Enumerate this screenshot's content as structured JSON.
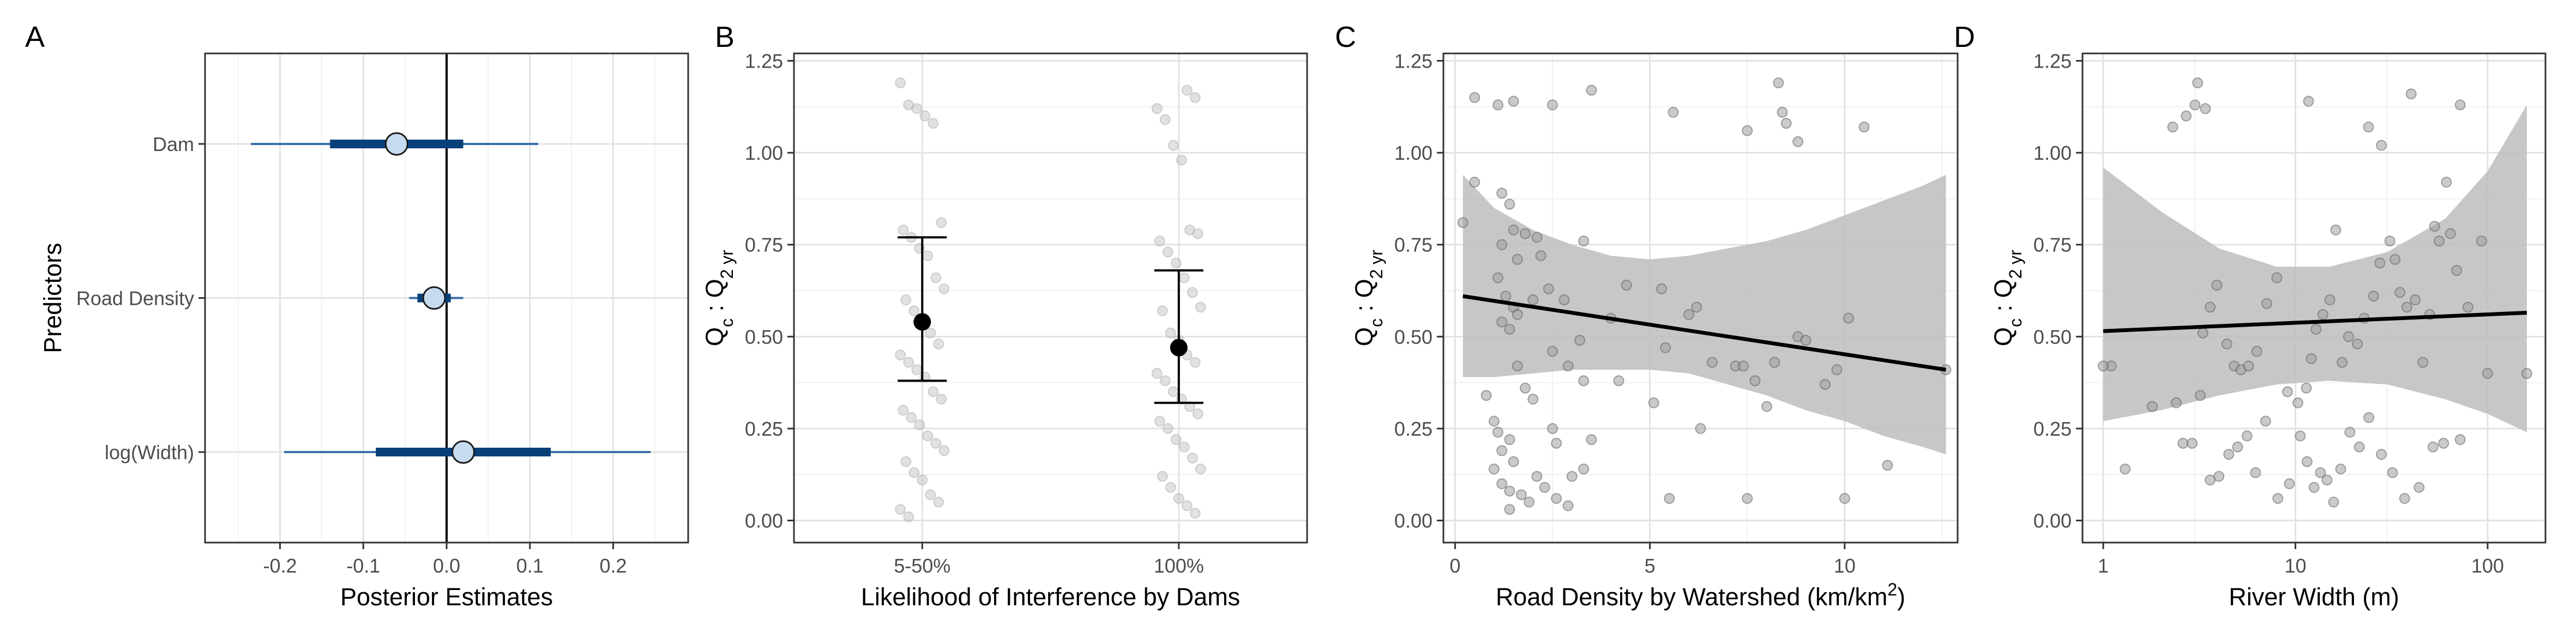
{
  "chart_data": [
    {
      "panel": "A",
      "type": "interval",
      "xlabel": "Posterior Estimates",
      "ylabel": "Predictors",
      "xlim": [
        -0.29,
        0.29
      ],
      "xticks": [
        -0.2,
        -0.1,
        0.0,
        0.1,
        0.2
      ],
      "xtick_labels": [
        "-0.2",
        "-0.1",
        "0.0",
        "0.1",
        "0.2"
      ],
      "reference_line": 0,
      "colors": {
        "outer": "#3a6fa8",
        "inner": "#08407a",
        "point": "#c6dbef"
      },
      "predictors": [
        {
          "label": "Dam",
          "estimate": -0.06,
          "inner": [
            -0.14,
            0.02
          ],
          "outer": [
            -0.235,
            0.11
          ]
        },
        {
          "label": "Road Density",
          "estimate": -0.015,
          "inner": [
            -0.035,
            0.005
          ],
          "outer": [
            -0.045,
            0.02
          ]
        },
        {
          "label": "log(Width)",
          "estimate": 0.02,
          "inner": [
            -0.085,
            0.125
          ],
          "outer": [
            -0.195,
            0.245
          ]
        }
      ]
    },
    {
      "panel": "B",
      "type": "errorbar",
      "xlabel": "Likelihood of Interference by Dams",
      "ylabel_main": "Q",
      "ylabel_sub1": "c",
      "ylabel_sep": " : Q",
      "ylabel_sub2": "2 yr",
      "ylim": [
        -0.06,
        1.27
      ],
      "yticks": [
        0.0,
        0.25,
        0.5,
        0.75,
        1.0,
        1.25
      ],
      "ytick_labels": [
        "0.00",
        "0.25",
        "0.50",
        "0.75",
        "1.00",
        "1.25"
      ],
      "categories": [
        "5-50%",
        "100%"
      ],
      "means": [
        0.54,
        0.47
      ],
      "lower": [
        0.38,
        0.32
      ],
      "upper": [
        0.77,
        0.68
      ],
      "points": [
        [
          1.19,
          1.13,
          1.12,
          1.1,
          1.08,
          0.81,
          0.79,
          0.77,
          0.74,
          0.72,
          0.66,
          0.63,
          0.6,
          0.57,
          0.55,
          0.51,
          0.48,
          0.45,
          0.43,
          0.41,
          0.39,
          0.35,
          0.33,
          0.3,
          0.28,
          0.26,
          0.23,
          0.21,
          0.19,
          0.16,
          0.13,
          0.11,
          0.07,
          0.05,
          0.03,
          0.01
        ],
        [
          1.17,
          1.15,
          1.12,
          1.09,
          1.02,
          0.98,
          0.79,
          0.78,
          0.76,
          0.73,
          0.7,
          0.66,
          0.62,
          0.58,
          0.57,
          0.51,
          0.49,
          0.45,
          0.43,
          0.4,
          0.38,
          0.35,
          0.33,
          0.31,
          0.29,
          0.27,
          0.25,
          0.22,
          0.2,
          0.17,
          0.14,
          0.12,
          0.09,
          0.06,
          0.04,
          0.02
        ]
      ]
    },
    {
      "panel": "C",
      "type": "scatter",
      "xlabel_main": "Road Density by Watershed (km",
      "xlabel_mid": "/km",
      "xlabel_sup": "2",
      "xlabel_end": ")",
      "ylabel_main": "Q",
      "ylabel_sub1": "c",
      "ylabel_sep": " : Q",
      "ylabel_sub2": "2 yr",
      "xlim": [
        -0.3,
        12.9
      ],
      "ylim": [
        -0.06,
        1.27
      ],
      "xticks": [
        0,
        5,
        10
      ],
      "xtick_labels": [
        "0",
        "5",
        "10"
      ],
      "yticks": [
        0.0,
        0.25,
        0.5,
        0.75,
        1.0,
        1.25
      ],
      "ytick_labels": [
        "0.00",
        "0.25",
        "0.50",
        "0.75",
        "1.00",
        "1.25"
      ],
      "fit": {
        "x": [
          0.2,
          12.6
        ],
        "y": [
          0.61,
          0.41
        ]
      },
      "band": {
        "x": [
          0.2,
          1,
          2,
          3,
          4,
          5,
          6,
          7,
          8,
          9,
          10,
          11,
          12,
          12.6
        ],
        "upper": [
          0.94,
          0.85,
          0.79,
          0.75,
          0.72,
          0.71,
          0.72,
          0.74,
          0.76,
          0.79,
          0.83,
          0.87,
          0.91,
          0.94
        ],
        "lower": [
          0.39,
          0.39,
          0.4,
          0.41,
          0.41,
          0.41,
          0.4,
          0.37,
          0.34,
          0.3,
          0.27,
          0.23,
          0.2,
          0.18
        ]
      },
      "points": [
        [
          0.5,
          1.15
        ],
        [
          1.1,
          1.13
        ],
        [
          1.5,
          1.14
        ],
        [
          2.5,
          1.13
        ],
        [
          3.5,
          1.17
        ],
        [
          5.6,
          1.11
        ],
        [
          7.5,
          1.06
        ],
        [
          8.3,
          1.19
        ],
        [
          8.4,
          1.11
        ],
        [
          8.5,
          1.08
        ],
        [
          8.8,
          1.03
        ],
        [
          10.5,
          1.07
        ],
        [
          0.5,
          0.92
        ],
        [
          1.2,
          0.89
        ],
        [
          1.4,
          0.86
        ],
        [
          0.2,
          0.81
        ],
        [
          1.2,
          0.75
        ],
        [
          1.5,
          0.79
        ],
        [
          1.8,
          0.78
        ],
        [
          2.1,
          0.77
        ],
        [
          2.2,
          0.72
        ],
        [
          1.6,
          0.71
        ],
        [
          1.1,
          0.66
        ],
        [
          1.3,
          0.61
        ],
        [
          1.5,
          0.58
        ],
        [
          1.2,
          0.54
        ],
        [
          1.4,
          0.52
        ],
        [
          1.6,
          0.56
        ],
        [
          2.0,
          0.6
        ],
        [
          2.4,
          0.63
        ],
        [
          2.8,
          0.6
        ],
        [
          3.3,
          0.76
        ],
        [
          4.0,
          0.55
        ],
        [
          3.2,
          0.49
        ],
        [
          2.5,
          0.46
        ],
        [
          2.9,
          0.42
        ],
        [
          3.3,
          0.38
        ],
        [
          1.6,
          0.42
        ],
        [
          1.8,
          0.36
        ],
        [
          2.0,
          0.33
        ],
        [
          0.8,
          0.34
        ],
        [
          2.5,
          0.25
        ],
        [
          2.6,
          0.21
        ],
        [
          3.5,
          0.22
        ],
        [
          3.0,
          0.12
        ],
        [
          3.3,
          0.14
        ],
        [
          1.0,
          0.27
        ],
        [
          1.1,
          0.24
        ],
        [
          1.4,
          0.22
        ],
        [
          1.2,
          0.19
        ],
        [
          1.5,
          0.16
        ],
        [
          1.0,
          0.14
        ],
        [
          1.2,
          0.1
        ],
        [
          1.4,
          0.08
        ],
        [
          1.7,
          0.07
        ],
        [
          1.9,
          0.05
        ],
        [
          2.1,
          0.12
        ],
        [
          2.3,
          0.09
        ],
        [
          2.6,
          0.06
        ],
        [
          2.9,
          0.04
        ],
        [
          1.4,
          0.03
        ],
        [
          4.4,
          0.64
        ],
        [
          5.3,
          0.63
        ],
        [
          5.4,
          0.47
        ],
        [
          5.5,
          0.06
        ],
        [
          6.3,
          0.25
        ],
        [
          6.0,
          0.56
        ],
        [
          6.2,
          0.58
        ],
        [
          6.6,
          0.43
        ],
        [
          7.2,
          0.42
        ],
        [
          7.4,
          0.42
        ],
        [
          7.7,
          0.38
        ],
        [
          7.5,
          0.06
        ],
        [
          8.0,
          0.31
        ],
        [
          8.2,
          0.43
        ],
        [
          8.8,
          0.5
        ],
        [
          9.0,
          0.49
        ],
        [
          9.5,
          0.37
        ],
        [
          9.8,
          0.41
        ],
        [
          10.0,
          0.06
        ],
        [
          10.1,
          0.55
        ],
        [
          11.1,
          0.15
        ],
        [
          12.6,
          0.41
        ],
        [
          4.2,
          0.38
        ],
        [
          5.1,
          0.32
        ]
      ]
    },
    {
      "panel": "D",
      "type": "scatter",
      "xlabel": "River Width (m)",
      "ylabel_main": "Q",
      "ylabel_sub1": "c",
      "ylabel_sep": " : Q",
      "ylabel_sub2": "2 yr",
      "xscale": "log10",
      "xlim": [
        0.78,
        200
      ],
      "ylim": [
        -0.06,
        1.27
      ],
      "xticks": [
        1,
        10,
        100
      ],
      "xtick_labels": [
        "1",
        "10",
        "100"
      ],
      "yticks": [
        0.0,
        0.25,
        0.5,
        0.75,
        1.0,
        1.25
      ],
      "ytick_labels": [
        "0.00",
        "0.25",
        "0.50",
        "0.75",
        "1.00",
        "1.25"
      ],
      "fit": {
        "x": [
          1,
          160
        ],
        "y": [
          0.515,
          0.565
        ]
      },
      "band": {
        "x": [
          1,
          2,
          4,
          8,
          15,
          30,
          60,
          100,
          160
        ],
        "upper": [
          0.96,
          0.84,
          0.74,
          0.69,
          0.69,
          0.73,
          0.82,
          0.95,
          1.13
        ],
        "lower": [
          0.27,
          0.3,
          0.34,
          0.37,
          0.38,
          0.37,
          0.33,
          0.29,
          0.24
        ]
      },
      "points": [
        [
          2.3,
          1.07
        ],
        [
          2.7,
          1.1
        ],
        [
          3.0,
          1.13
        ],
        [
          3.1,
          1.19
        ],
        [
          3.4,
          1.12
        ],
        [
          11.7,
          1.14
        ],
        [
          24,
          1.07
        ],
        [
          28,
          1.02
        ],
        [
          40,
          1.16
        ],
        [
          72,
          1.13
        ],
        [
          1.1,
          0.42
        ],
        [
          1.3,
          0.14
        ],
        [
          1.8,
          0.31
        ],
        [
          2.4,
          0.32
        ],
        [
          2.6,
          0.21
        ],
        [
          2.9,
          0.21
        ],
        [
          3.2,
          0.34
        ],
        [
          3.6,
          0.11
        ],
        [
          4.0,
          0.12
        ],
        [
          4.5,
          0.18
        ],
        [
          5.0,
          0.2
        ],
        [
          5.6,
          0.23
        ],
        [
          6.2,
          0.13
        ],
        [
          7.0,
          0.27
        ],
        [
          8.1,
          0.06
        ],
        [
          9.3,
          0.1
        ],
        [
          10.6,
          0.23
        ],
        [
          11.5,
          0.16
        ],
        [
          12.5,
          0.09
        ],
        [
          13.5,
          0.13
        ],
        [
          14.6,
          0.11
        ],
        [
          15.8,
          0.05
        ],
        [
          17.2,
          0.14
        ],
        [
          19.2,
          0.24
        ],
        [
          21.5,
          0.2
        ],
        [
          24.1,
          0.28
        ],
        [
          28,
          0.18
        ],
        [
          32,
          0.13
        ],
        [
          37,
          0.06
        ],
        [
          44,
          0.09
        ],
        [
          52,
          0.2
        ],
        [
          59,
          0.21
        ],
        [
          72,
          0.22
        ],
        [
          3.3,
          0.51
        ],
        [
          3.6,
          0.58
        ],
        [
          3.9,
          0.64
        ],
        [
          4.4,
          0.48
        ],
        [
          4.8,
          0.42
        ],
        [
          5.2,
          0.41
        ],
        [
          5.7,
          0.42
        ],
        [
          6.3,
          0.46
        ],
        [
          7.1,
          0.59
        ],
        [
          8.0,
          0.66
        ],
        [
          9.1,
          0.35
        ],
        [
          10.3,
          0.32
        ],
        [
          11.4,
          0.36
        ],
        [
          12.1,
          0.44
        ],
        [
          12.8,
          0.52
        ],
        [
          13.9,
          0.56
        ],
        [
          15.1,
          0.6
        ],
        [
          16.2,
          0.79
        ],
        [
          17.5,
          0.43
        ],
        [
          18.9,
          0.5
        ],
        [
          21.0,
          0.48
        ],
        [
          22.8,
          0.55
        ],
        [
          25.5,
          0.61
        ],
        [
          27.5,
          0.7
        ],
        [
          31,
          0.76
        ],
        [
          33,
          0.71
        ],
        [
          35,
          0.62
        ],
        [
          38,
          0.58
        ],
        [
          42,
          0.6
        ],
        [
          46,
          0.43
        ],
        [
          50,
          0.56
        ],
        [
          53,
          0.8
        ],
        [
          56,
          0.76
        ],
        [
          61,
          0.92
        ],
        [
          64,
          0.78
        ],
        [
          69,
          0.68
        ],
        [
          79,
          0.58
        ],
        [
          93,
          0.76
        ],
        [
          100,
          0.4
        ],
        [
          160,
          0.4
        ],
        [
          1.0,
          0.42
        ]
      ]
    }
  ]
}
